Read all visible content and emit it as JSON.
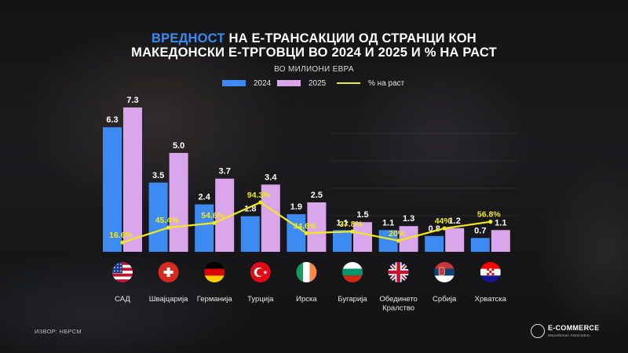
{
  "header": {
    "title_line1_accent": "ВРЕДНОСТ",
    "title_line1_rest": " НА Е-ТРАНСАКЦИИ ОД СТРАНЦИ КОН",
    "title_line2": "МАКЕДОНСКИ Е-ТРГОВЦИ ВО 2024 И 2025 И % НА РАСТ",
    "subtitle": "ВО МИЛИОНИ ЕВРА"
  },
  "colors": {
    "series_2024": "#3d8bf2",
    "series_2025": "#d9a6ec",
    "growth_line": "#f2ea1a",
    "title_accent": "#3d8bf2"
  },
  "chart_data": {
    "type": "bar",
    "categories": [
      "САД",
      "Швајцарија",
      "Германија",
      "Турција",
      "Ирска",
      "Бугарија",
      "Обединето Кралство",
      "Србија",
      "Хрватска"
    ],
    "category_label_lines": [
      [
        "САД"
      ],
      [
        "Швајцарија"
      ],
      [
        "Германија"
      ],
      [
        "Турција"
      ],
      [
        "Ирска"
      ],
      [
        "Бугарија"
      ],
      [
        "Обединето",
        "Кралство"
      ],
      [
        "Србија"
      ],
      [
        "Хрватска"
      ]
    ],
    "flags": [
      "us-flag-icon",
      "switzerland-flag-icon",
      "germany-flag-icon",
      "turkey-flag-icon",
      "ireland-flag-icon",
      "bulgaria-flag-icon",
      "uk-flag-icon",
      "serbia-flag-icon",
      "croatia-flag-icon"
    ],
    "series": [
      {
        "name": "2024",
        "values": [
          6.3,
          3.5,
          2.4,
          1.8,
          1.9,
          1.1,
          1.1,
          0.8,
          0.7
        ],
        "labels": [
          "6.3",
          "3.5",
          "2.4",
          "1.8",
          "1.9",
          "1.1",
          "1.1",
          "0.8",
          "0.7"
        ]
      },
      {
        "name": "2025",
        "values": [
          7.3,
          5.0,
          3.7,
          3.4,
          2.5,
          1.5,
          1.3,
          1.2,
          1.1
        ],
        "labels": [
          "7.3",
          "5.0",
          "3.7",
          "3.4",
          "2.5",
          "1.5",
          "1.3",
          "1.2",
          "1.1"
        ]
      },
      {
        "name": "% на раст",
        "type": "line",
        "values": [
          16.6,
          45.4,
          54.6,
          94.3,
          34.6,
          37.8,
          20,
          44,
          56.8
        ],
        "labels": [
          "16.6%",
          "45.4%",
          "54.6%",
          "94.3%",
          "34.6%",
          "37.8%",
          "20%",
          "44%",
          "56.8%"
        ]
      }
    ],
    "ylim_bars": [
      0,
      7.3
    ],
    "ylim_line": [
      0,
      100
    ],
    "legend_position": "top-center",
    "grid": false
  },
  "footer": {
    "source": "ИЗВОР: НБРСМ",
    "logo_name": "E-COMMERCE",
    "logo_sub": "Macedonian Association"
  }
}
